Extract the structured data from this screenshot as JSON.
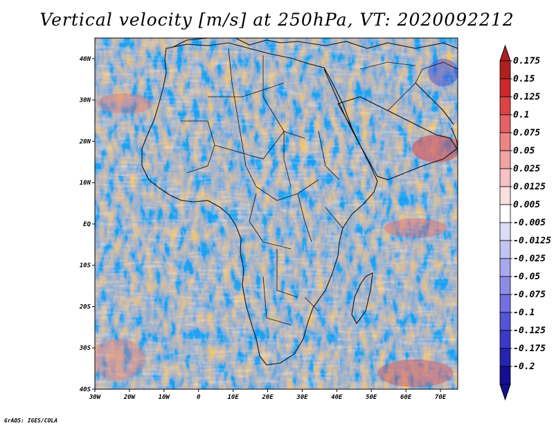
{
  "title": "Vertical velocity [m/s] at 250hPa, VT: 2020092212",
  "footer": "GrADS: IGES/COLA",
  "map": {
    "lon_range": [
      -30,
      75
    ],
    "lat_range": [
      -40,
      45
    ],
    "x_ticks": [
      "30W",
      "20W",
      "10W",
      "0",
      "10E",
      "20E",
      "30E",
      "40E",
      "50E",
      "60E",
      "70E"
    ],
    "y_ticks": [
      "40N",
      "30N",
      "20N",
      "10N",
      "EQ",
      "10S",
      "20S",
      "30S",
      "40S"
    ]
  },
  "colorbar": {
    "labels": [
      "0.175",
      "0.15",
      "0.125",
      "0.1",
      "0.075",
      "0.05",
      "0.025",
      "0.0125",
      "0.005",
      "-0.005",
      "-0.0125",
      "-0.025",
      "-0.05",
      "-0.075",
      "-0.1",
      "-0.125",
      "-0.175",
      "-0.2"
    ],
    "colors": [
      "#b02020",
      "#cc2a2a",
      "#dc4444",
      "#e66262",
      "#ee8484",
      "#f3a3a3",
      "#f8c2c2",
      "#fcdede",
      "#ffffff",
      "#dcdcf8",
      "#c4c4f4",
      "#a8a8ee",
      "#8c8ce8",
      "#7070e0",
      "#5454d6",
      "#3a3ac8",
      "#2424b0",
      "#140e90"
    ]
  }
}
